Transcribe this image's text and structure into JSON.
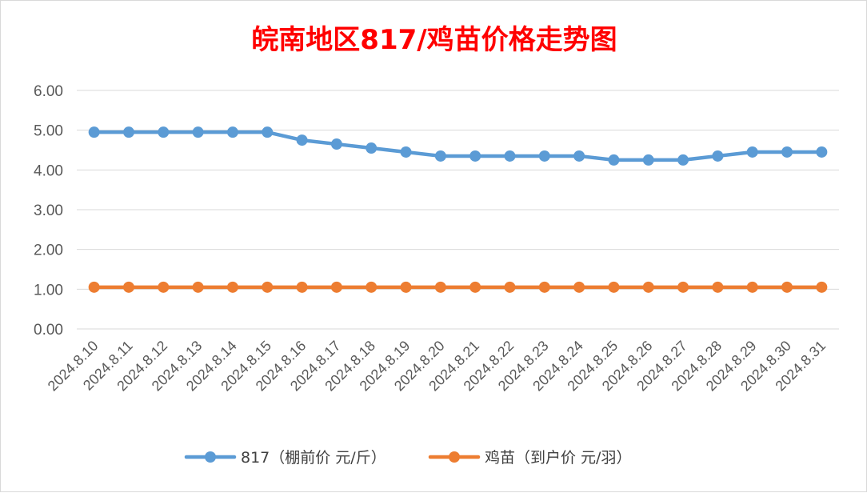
{
  "chart_data": {
    "type": "line",
    "title": "皖南地区817/鸡苗价格走势图",
    "title_color": "#ff0000",
    "xlabel": "",
    "ylabel": "",
    "categories": [
      "2024.8.10",
      "2024.8.11",
      "2024.8.12",
      "2024.8.13",
      "2024.8.14",
      "2024.8.15",
      "2024.8.16",
      "2024.8.17",
      "2024.8.18",
      "2024.8.19",
      "2024.8.20",
      "2024.8.21",
      "2024.8.22",
      "2024.8.23",
      "2024.8.24",
      "2024.8.25",
      "2024.8.26",
      "2024.8.27",
      "2024.8.28",
      "2024.8.29",
      "2024.8.30",
      "2024.8.31"
    ],
    "ylim": [
      0,
      6
    ],
    "y_ticks": [
      "0.00",
      "1.00",
      "2.00",
      "3.00",
      "4.00",
      "5.00",
      "6.00"
    ],
    "grid": true,
    "legend_position": "bottom",
    "series": [
      {
        "name": "817（棚前价 元/斤）",
        "color": "#5b9bd5",
        "values": [
          4.95,
          4.95,
          4.95,
          4.95,
          4.95,
          4.95,
          4.75,
          4.65,
          4.55,
          4.45,
          4.35,
          4.35,
          4.35,
          4.35,
          4.35,
          4.25,
          4.25,
          4.25,
          4.35,
          4.45,
          4.45,
          4.45
        ]
      },
      {
        "name": "鸡苗（到户价 元/羽）",
        "color": "#ed7d31",
        "values": [
          1.05,
          1.05,
          1.05,
          1.05,
          1.05,
          1.05,
          1.05,
          1.05,
          1.05,
          1.05,
          1.05,
          1.05,
          1.05,
          1.05,
          1.05,
          1.05,
          1.05,
          1.05,
          1.05,
          1.05,
          1.05,
          1.05
        ]
      }
    ]
  }
}
